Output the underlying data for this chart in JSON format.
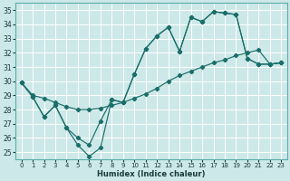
{
  "xlabel": "Humidex (Indice chaleur)",
  "bg_color": "#cde8e8",
  "grid_color": "#ffffff",
  "line_color": "#1a6e6a",
  "xlim": [
    -0.5,
    23.5
  ],
  "ylim": [
    24.5,
    35.5
  ],
  "xticks": [
    0,
    1,
    2,
    3,
    4,
    5,
    6,
    7,
    8,
    9,
    10,
    11,
    12,
    13,
    14,
    15,
    16,
    17,
    18,
    19,
    20,
    21,
    22,
    23
  ],
  "yticks": [
    25,
    26,
    27,
    28,
    29,
    30,
    31,
    32,
    33,
    34,
    35
  ],
  "series1_x": [
    0,
    1,
    2,
    3,
    4,
    5,
    6,
    7,
    8,
    9,
    10,
    11,
    12,
    13,
    14,
    15,
    16,
    17,
    18,
    19,
    20,
    21,
    22,
    23
  ],
  "series1_y": [
    29.9,
    28.9,
    27.5,
    28.3,
    26.7,
    26.0,
    25.5,
    27.2,
    28.7,
    28.5,
    30.5,
    32.3,
    33.2,
    33.8,
    32.1,
    34.5,
    34.2,
    34.9,
    34.8,
    34.7,
    31.6,
    31.2,
    31.2,
    31.3
  ],
  "series2_x": [
    0,
    1,
    2,
    3,
    4,
    5,
    6,
    7,
    8,
    9,
    10,
    11,
    12,
    13,
    14,
    15,
    16,
    17,
    18,
    19,
    20,
    21,
    22,
    23
  ],
  "series2_y": [
    29.9,
    28.9,
    27.5,
    28.3,
    26.7,
    25.5,
    24.7,
    25.3,
    28.7,
    28.5,
    30.5,
    32.3,
    33.2,
    33.8,
    32.1,
    34.5,
    34.2,
    34.9,
    34.8,
    34.7,
    31.6,
    31.2,
    31.2,
    31.3
  ],
  "series3_x": [
    0,
    1,
    2,
    3,
    4,
    5,
    6,
    7,
    8,
    9,
    10,
    11,
    12,
    13,
    14,
    15,
    16,
    17,
    18,
    19,
    20,
    21,
    22,
    23
  ],
  "series3_y": [
    29.9,
    29.0,
    28.8,
    28.5,
    28.2,
    28.0,
    28.0,
    28.1,
    28.3,
    28.5,
    28.8,
    29.1,
    29.5,
    30.0,
    30.4,
    30.7,
    31.0,
    31.3,
    31.5,
    31.8,
    32.0,
    32.2,
    31.2,
    31.3
  ]
}
